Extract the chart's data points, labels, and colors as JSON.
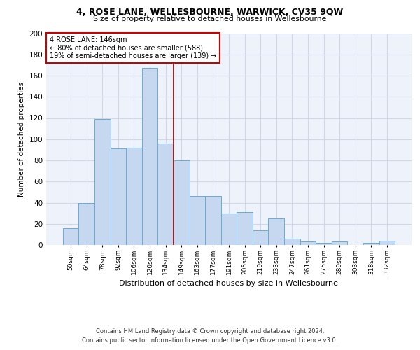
{
  "title": "4, ROSE LANE, WELLESBOURNE, WARWICK, CV35 9QW",
  "subtitle": "Size of property relative to detached houses in Wellesbourne",
  "xlabel": "Distribution of detached houses by size in Wellesbourne",
  "ylabel": "Number of detached properties",
  "footer_line1": "Contains HM Land Registry data © Crown copyright and database right 2024.",
  "footer_line2": "Contains public sector information licensed under the Open Government Licence v3.0.",
  "annotation_line1": "4 ROSE LANE: 146sqm",
  "annotation_line2": "← 80% of detached houses are smaller (588)",
  "annotation_line3": "19% of semi-detached houses are larger (139) →",
  "bar_labels": [
    "50sqm",
    "64sqm",
    "78sqm",
    "92sqm",
    "106sqm",
    "120sqm",
    "134sqm",
    "149sqm",
    "163sqm",
    "177sqm",
    "191sqm",
    "205sqm",
    "219sqm",
    "233sqm",
    "247sqm",
    "261sqm",
    "275sqm",
    "289sqm",
    "303sqm",
    "318sqm",
    "332sqm"
  ],
  "bar_values": [
    16,
    40,
    119,
    91,
    92,
    167,
    96,
    80,
    46,
    46,
    30,
    31,
    14,
    25,
    6,
    3,
    2,
    3,
    0,
    2,
    4
  ],
  "bar_color": "#c5d8ef",
  "bar_edge_color": "#6aaad4",
  "vertical_line_index": 7,
  "vertical_line_color": "#8b0000",
  "annotation_box_color": "#ffffff",
  "annotation_box_edge_color": "#cc0000",
  "background_color": "#ffffff",
  "plot_background_color": "#eef2fa",
  "grid_color": "#d0d8e8",
  "ylim": [
    0,
    200
  ],
  "yticks": [
    0,
    20,
    40,
    60,
    80,
    100,
    120,
    140,
    160,
    180,
    200
  ]
}
